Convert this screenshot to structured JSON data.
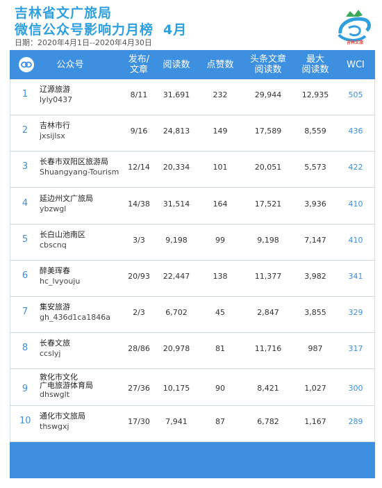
{
  "header": {
    "title_line1": "吉林省文广旅局",
    "title_line2": "微信公众号影响力月榜",
    "month": "4月",
    "date_range": "日期：2020年4月1日--2020年4月30日",
    "logo_text": "吉林文旅"
  },
  "columns": {
    "account": "公众号",
    "posts_line1": "发布/",
    "posts_line2": "文章",
    "reads": "阅读数",
    "likes": "点赞数",
    "headline_line1": "头条文章",
    "headline_line2": "阅读数",
    "max_line1": "最大",
    "max_line2": "阅读数",
    "wci": "WCI"
  },
  "rows": [
    {
      "rank": "1",
      "name": [
        "辽源旅游"
      ],
      "id": "lyly0437",
      "posts": "8/11",
      "reads": "31,691",
      "likes": "232",
      "headline": "29,944",
      "max": "12,935",
      "wci": "505"
    },
    {
      "rank": "2",
      "name": [
        "吉林市行"
      ],
      "id": "jxsijlsx",
      "posts": "9/16",
      "reads": "24,813",
      "likes": "149",
      "headline": "17,589",
      "max": "8,559",
      "wci": "436"
    },
    {
      "rank": "3",
      "name": [
        "长春市双阳区旅游局"
      ],
      "id": "Shuangyang-Tourism",
      "posts": "12/14",
      "reads": "20,334",
      "likes": "101",
      "headline": "20,051",
      "max": "5,573",
      "wci": "422"
    },
    {
      "rank": "4",
      "name": [
        "延边州文广旅局"
      ],
      "id": "ybzwgl",
      "posts": "14/38",
      "reads": "31,514",
      "likes": "164",
      "headline": "17,521",
      "max": "3,936",
      "wci": "410"
    },
    {
      "rank": "5",
      "name": [
        "长白山池南区"
      ],
      "id": "cbscnq",
      "posts": "3/3",
      "reads": "9,198",
      "likes": "99",
      "headline": "9,198",
      "max": "7,147",
      "wci": "410"
    },
    {
      "rank": "6",
      "name": [
        "醉美珲春"
      ],
      "id": "hc_lvyouju",
      "posts": "20/93",
      "reads": "22,447",
      "likes": "138",
      "headline": "11,377",
      "max": "3,982",
      "wci": "341"
    },
    {
      "rank": "7",
      "name": [
        "集安旅游"
      ],
      "id": "gh_436d1ca1846a",
      "posts": "2/3",
      "reads": "6,702",
      "likes": "45",
      "headline": "2,847",
      "max": "3,855",
      "wci": "329"
    },
    {
      "rank": "8",
      "name": [
        "长春文旅"
      ],
      "id": "ccslyj",
      "posts": "28/86",
      "reads": "20,978",
      "likes": "81",
      "headline": "11,716",
      "max": "987",
      "wci": "317"
    },
    {
      "rank": "9",
      "name": [
        "敦化市文化",
        "广电旅游体育局"
      ],
      "id": "dhswglt",
      "posts": "27/36",
      "reads": "10,175",
      "likes": "90",
      "headline": "8,421",
      "max": "1,027",
      "wci": "300"
    },
    {
      "rank": "10",
      "name": [
        "通化市文旅局"
      ],
      "id": "thswgxj",
      "posts": "17/30",
      "reads": "7,941",
      "likes": "87",
      "headline": "6,782",
      "max": "1,167",
      "wci": "289"
    }
  ],
  "colors": {
    "accent": "#3d8fe0",
    "title": "#2f9fde"
  }
}
